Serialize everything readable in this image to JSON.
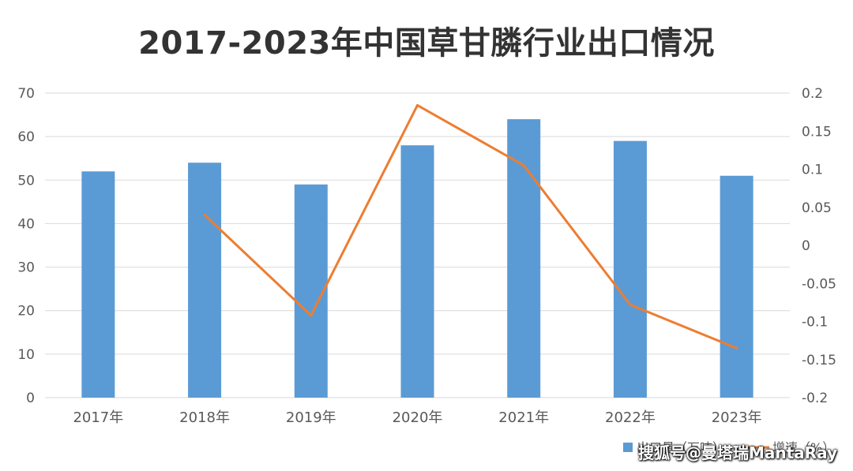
{
  "chart_data": {
    "type": "bar",
    "title": "2017-2023年中国草甘膦行业出口情况",
    "categories": [
      "2017年",
      "2018年",
      "2019年",
      "2020年",
      "2021年",
      "2022年",
      "2023年"
    ],
    "series": [
      {
        "name": "出口量（万吨）",
        "type": "bar",
        "axis": "left",
        "color": "#5b9bd5",
        "values": [
          52,
          54,
          49,
          58,
          64,
          59,
          51
        ]
      },
      {
        "name": "增速（%）",
        "type": "line",
        "axis": "right",
        "color": "#ed7d31",
        "values": [
          null,
          0.04,
          -0.092,
          0.184,
          0.105,
          -0.078,
          -0.135
        ]
      }
    ],
    "ylim_left": [
      0,
      70
    ],
    "yticks_left": [
      "0",
      "10",
      "20",
      "30",
      "40",
      "50",
      "60",
      "70"
    ],
    "ylim_right": [
      -0.2,
      0.2
    ],
    "yticks_right": [
      "-0.2",
      "-0.15",
      "-0.1",
      "-0.05",
      "0",
      "0.05",
      "0.1",
      "0.15",
      "0.2"
    ],
    "grid": true,
    "legend_position": "bottom-right"
  },
  "watermark": "搜狐号@曼塔瑞MantaRay"
}
